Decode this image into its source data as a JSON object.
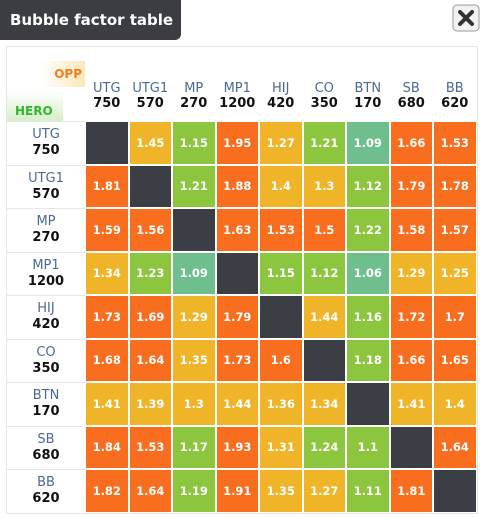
{
  "header": {
    "title": "Bubble factor table"
  },
  "table": {
    "corner_opp": "OPP",
    "corner_hero": "HERO",
    "columns": [
      {
        "name": "UTG",
        "stack": 750
      },
      {
        "name": "UTG1",
        "stack": 570
      },
      {
        "name": "MP",
        "stack": 270
      },
      {
        "name": "MP1",
        "stack": 1200
      },
      {
        "name": "HIJ",
        "stack": 420
      },
      {
        "name": "CO",
        "stack": 350
      },
      {
        "name": "BTN",
        "stack": 170
      },
      {
        "name": "SB",
        "stack": 680
      },
      {
        "name": "BB",
        "stack": 620
      }
    ],
    "rows": [
      {
        "name": "UTG",
        "stack": 750,
        "values": [
          null,
          1.45,
          1.15,
          1.95,
          1.27,
          1.21,
          1.09,
          1.66,
          1.53
        ]
      },
      {
        "name": "UTG1",
        "stack": 570,
        "values": [
          1.81,
          null,
          1.21,
          1.88,
          1.4,
          1.3,
          1.12,
          1.79,
          1.78
        ]
      },
      {
        "name": "MP",
        "stack": 270,
        "values": [
          1.59,
          1.56,
          null,
          1.63,
          1.53,
          1.5,
          1.22,
          1.58,
          1.57
        ]
      },
      {
        "name": "MP1",
        "stack": 1200,
        "values": [
          1.34,
          1.23,
          1.09,
          null,
          1.15,
          1.12,
          1.06,
          1.29,
          1.25
        ]
      },
      {
        "name": "HIJ",
        "stack": 420,
        "values": [
          1.73,
          1.69,
          1.29,
          1.79,
          null,
          1.44,
          1.16,
          1.72,
          1.7
        ]
      },
      {
        "name": "CO",
        "stack": 350,
        "values": [
          1.68,
          1.64,
          1.35,
          1.73,
          1.6,
          null,
          1.18,
          1.66,
          1.65
        ]
      },
      {
        "name": "BTN",
        "stack": 170,
        "values": [
          1.41,
          1.39,
          1.3,
          1.44,
          1.36,
          1.34,
          null,
          1.41,
          1.4
        ]
      },
      {
        "name": "SB",
        "stack": 680,
        "values": [
          1.84,
          1.53,
          1.17,
          1.93,
          1.31,
          1.24,
          1.1,
          null,
          1.64
        ]
      },
      {
        "name": "BB",
        "stack": 620,
        "values": [
          1.82,
          1.64,
          1.19,
          1.91,
          1.35,
          1.27,
          1.11,
          1.81,
          null
        ]
      }
    ]
  }
}
